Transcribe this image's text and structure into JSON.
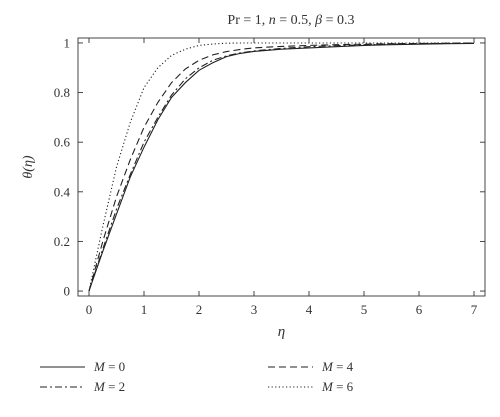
{
  "chart_data": {
    "type": "line",
    "title_parts": [
      "Pr = 1, ",
      "n",
      " = 0.5, ",
      "β",
      " = 0.3"
    ],
    "xlabel": "η",
    "ylabel": "θ(η)",
    "xlim": [
      -0.2,
      7.2
    ],
    "ylim": [
      -0.02,
      1.02
    ],
    "x_ticks": [
      "0",
      "1",
      "2",
      "3",
      "4",
      "5",
      "6",
      "7"
    ],
    "y_ticks": [
      "0",
      "0.2",
      "0.4",
      "0.6",
      "0.8",
      "1"
    ],
    "grid": false,
    "legend_position": "bottom",
    "series": [
      {
        "name_var": "M",
        "name_val": " = 0",
        "dash": "none",
        "x": [
          0,
          0.25,
          0.5,
          0.75,
          1,
          1.25,
          1.5,
          1.75,
          2,
          2.25,
          2.5,
          2.75,
          3,
          3.5,
          4,
          4.5,
          5,
          5.5,
          6,
          6.5,
          7
        ],
        "y": [
          0,
          0.16,
          0.31,
          0.46,
          0.58,
          0.69,
          0.78,
          0.84,
          0.89,
          0.92,
          0.945,
          0.958,
          0.966,
          0.975,
          0.98,
          0.985,
          0.99,
          0.993,
          0.995,
          0.997,
          0.998
        ]
      },
      {
        "name_var": "M",
        "name_val": " = 2",
        "dash": "7,3,2,3",
        "x": [
          0,
          0.25,
          0.5,
          0.75,
          1,
          1.25,
          1.5,
          1.75,
          2,
          2.25,
          2.5,
          2.75,
          3,
          3.5,
          4,
          4.5,
          5,
          5.5,
          6,
          6.5,
          7
        ],
        "y": [
          0,
          0.17,
          0.33,
          0.47,
          0.6,
          0.7,
          0.79,
          0.855,
          0.9,
          0.93,
          0.948,
          0.96,
          0.968,
          0.978,
          0.985,
          0.989,
          0.993,
          0.995,
          0.997,
          0.998,
          0.999
        ]
      },
      {
        "name_var": "M",
        "name_val": " = 4",
        "dash": "7,4",
        "x": [
          0,
          0.25,
          0.5,
          0.75,
          1,
          1.25,
          1.5,
          1.75,
          2,
          2.25,
          2.5,
          2.75,
          3,
          3.5,
          4,
          4.5,
          5,
          5.5,
          6,
          6.5,
          7
        ],
        "y": [
          0,
          0.2,
          0.38,
          0.53,
          0.66,
          0.76,
          0.84,
          0.895,
          0.93,
          0.952,
          0.965,
          0.974,
          0.98,
          0.986,
          0.99,
          0.993,
          0.995,
          0.997,
          0.998,
          0.999,
          1.0
        ]
      },
      {
        "name_var": "M",
        "name_val": " = 6",
        "dash": "1.2,2.4",
        "x": [
          0,
          0.25,
          0.5,
          0.75,
          1,
          1.25,
          1.5,
          1.75,
          2,
          2.25,
          2.5,
          2.75,
          3,
          3.5,
          4,
          4.5,
          5,
          5.5,
          6,
          6.5,
          7
        ],
        "y": [
          0,
          0.26,
          0.5,
          0.68,
          0.82,
          0.9,
          0.95,
          0.975,
          0.99,
          0.996,
          0.999,
          1.0,
          1.0,
          1.0,
          1.0,
          1.0,
          1.0,
          1.0,
          1.0,
          1.0,
          1.0
        ]
      }
    ]
  }
}
